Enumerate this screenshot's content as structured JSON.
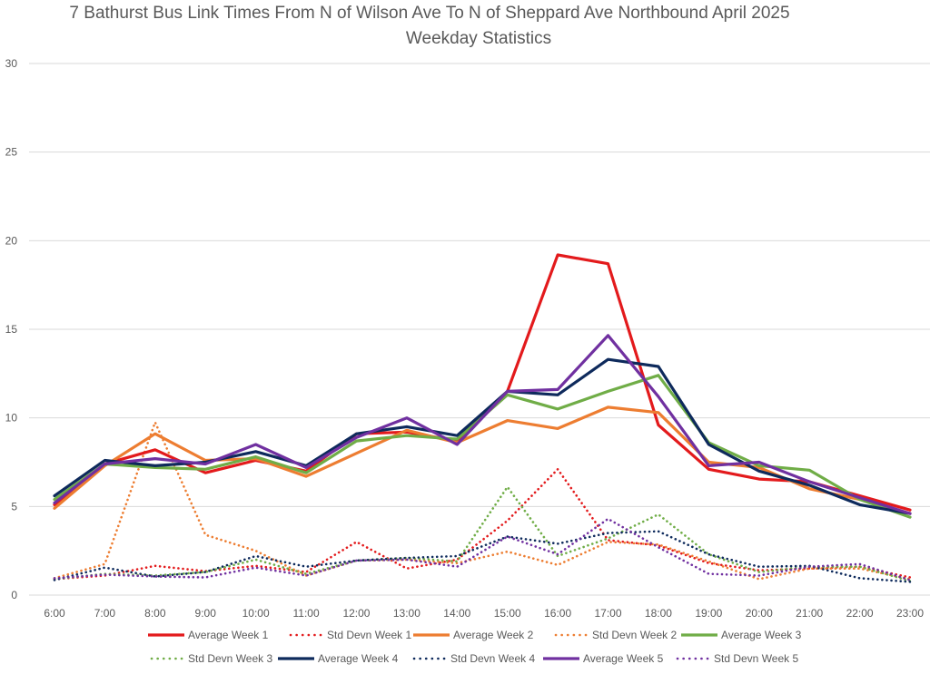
{
  "chart_data": {
    "type": "line",
    "title": "7 Bathurst Bus Link Times From N of Wilson Ave To N of Sheppard Ave Northbound April 2025",
    "subtitle": "Weekday Statistics",
    "xlabel": "",
    "ylabel": "",
    "ylim": [
      0,
      30
    ],
    "yticks": [
      "0",
      "5",
      "10",
      "15",
      "20",
      "25",
      "30"
    ],
    "grid": true,
    "legend_position": "bottom",
    "categories": [
      "6:00",
      "7:00",
      "8:00",
      "9:00",
      "10:00",
      "11:00",
      "12:00",
      "13:00",
      "14:00",
      "15:00",
      "16:00",
      "17:00",
      "18:00",
      "19:00",
      "20:00",
      "21:00",
      "22:00",
      "23:00"
    ],
    "series": [
      {
        "name": "Average Week 1",
        "color": "#e31a1c",
        "style": "solid",
        "values": [
          5.1,
          7.4,
          8.2,
          6.9,
          7.6,
          7.0,
          9.1,
          9.2,
          8.7,
          11.5,
          19.2,
          18.7,
          9.6,
          7.1,
          6.55,
          6.4,
          5.6,
          4.8
        ]
      },
      {
        "name": "Std Devn Week 1",
        "color": "#e31a1c",
        "style": "dotted",
        "values": [
          0.9,
          1.1,
          1.65,
          1.35,
          1.65,
          1.3,
          3.0,
          1.5,
          2.0,
          4.2,
          7.1,
          3.1,
          2.8,
          1.8,
          1.4,
          1.5,
          1.6,
          1.0
        ]
      },
      {
        "name": "Average Week 2",
        "color": "#ed7d31",
        "style": "solid",
        "values": [
          4.9,
          7.3,
          9.1,
          7.6,
          7.7,
          6.7,
          8.0,
          9.3,
          8.6,
          9.85,
          9.4,
          10.6,
          10.3,
          7.5,
          7.2,
          6.0,
          5.4,
          4.6
        ]
      },
      {
        "name": "Std Devn Week 2",
        "color": "#ed7d31",
        "style": "dotted",
        "values": [
          0.95,
          1.75,
          9.75,
          3.4,
          2.5,
          1.1,
          1.95,
          2.0,
          1.8,
          2.45,
          1.7,
          3.0,
          2.85,
          1.9,
          0.9,
          1.5,
          1.5,
          0.9
        ]
      },
      {
        "name": "Average Week 3",
        "color": "#70ad47",
        "style": "solid",
        "values": [
          5.4,
          7.4,
          7.2,
          7.1,
          7.8,
          6.9,
          8.7,
          9.0,
          8.8,
          11.3,
          10.5,
          11.5,
          12.4,
          8.6,
          7.3,
          7.05,
          5.4,
          4.4
        ]
      },
      {
        "name": "Std Devn Week 3",
        "color": "#70ad47",
        "style": "dotted",
        "values": [
          0.9,
          1.2,
          1.1,
          1.3,
          2.0,
          1.2,
          1.95,
          2.1,
          1.9,
          6.1,
          2.2,
          3.2,
          4.55,
          2.3,
          1.3,
          1.6,
          1.6,
          0.8
        ]
      },
      {
        "name": "Average Week 4",
        "color": "#0e2a5c",
        "style": "solid",
        "values": [
          5.6,
          7.6,
          7.3,
          7.5,
          8.1,
          7.3,
          9.1,
          9.5,
          9.0,
          11.5,
          11.3,
          13.3,
          12.9,
          8.5,
          7.0,
          6.2,
          5.1,
          4.6
        ]
      },
      {
        "name": "Std Devn Week 4",
        "color": "#0e2a5c",
        "style": "dotted",
        "values": [
          0.85,
          1.55,
          1.05,
          1.3,
          2.2,
          1.6,
          1.95,
          2.1,
          2.2,
          3.3,
          2.9,
          3.5,
          3.6,
          2.3,
          1.6,
          1.65,
          0.95,
          0.75
        ]
      },
      {
        "name": "Average Week 5",
        "color": "#7030a0",
        "style": "solid",
        "values": [
          5.2,
          7.4,
          7.7,
          7.4,
          8.5,
          7.2,
          8.9,
          10.0,
          8.5,
          11.5,
          11.6,
          14.65,
          11.2,
          7.3,
          7.5,
          6.4,
          5.5,
          4.6
        ]
      },
      {
        "name": "Std Devn Week 5",
        "color": "#7030a0",
        "style": "dotted",
        "values": [
          0.95,
          1.15,
          1.05,
          1.0,
          1.55,
          1.1,
          1.95,
          2.0,
          1.6,
          3.3,
          2.3,
          4.3,
          2.7,
          1.2,
          1.1,
          1.6,
          1.75,
          0.85
        ]
      }
    ]
  }
}
